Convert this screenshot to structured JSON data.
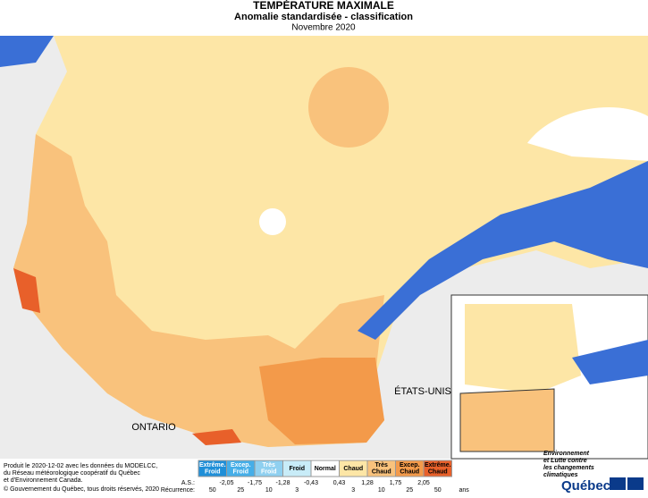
{
  "header": {
    "title": "TEMPÉRATURE MAXIMALE",
    "subtitle": "Anomalie standardisée - classification",
    "date": "Novembre 2020"
  },
  "map": {
    "labels": [
      "ÉTATS-UNIS",
      "ONTARIO"
    ]
  },
  "legend": {
    "classes": [
      {
        "lines": [
          "Extrême.",
          "Froid"
        ],
        "color": "#1f8fd8"
      },
      {
        "lines": [
          "Excep.",
          "Froid"
        ],
        "color": "#45aee8"
      },
      {
        "lines": [
          "Très",
          "Froid"
        ],
        "color": "#8fd0f0"
      },
      {
        "lines": [
          "Froid"
        ],
        "color": "#c8ecf8"
      },
      {
        "lines": [
          "Normal"
        ],
        "color": "#ffffff"
      },
      {
        "lines": [
          "Chaud"
        ],
        "color": "#fde6a6"
      },
      {
        "lines": [
          "Très",
          "Chaud"
        ],
        "color": "#f9c27c"
      },
      {
        "lines": [
          "Excep.",
          "Chaud"
        ],
        "color": "#f39a4a"
      },
      {
        "lines": [
          "Extrême.",
          "Chaud"
        ],
        "color": "#e8602a"
      }
    ],
    "as_label": "A.S.:",
    "as_values": [
      "-2,05",
      "-1,75",
      "-1,28",
      "-0,43",
      "0,43",
      "1,28",
      "1,75",
      "2,05"
    ],
    "rec_label": "Récurrence:",
    "rec_values": [
      "50",
      "25",
      "10",
      "3",
      "3",
      "10",
      "25",
      "50"
    ],
    "rec_unit": "ans"
  },
  "footer": {
    "credits": [
      "Produit le 2020-12-02 avec les données du MODELCC,",
      "du Réseau météorologique coopératif du Québec",
      "et d'Environnement Canada."
    ],
    "copyright": "© Gouvernement du Québec, tous droits réservés, 2020"
  },
  "logo": {
    "lines": [
      "Environnement",
      "et Lutte contre",
      "les changements",
      "climatiques"
    ],
    "brand": "Québec"
  }
}
